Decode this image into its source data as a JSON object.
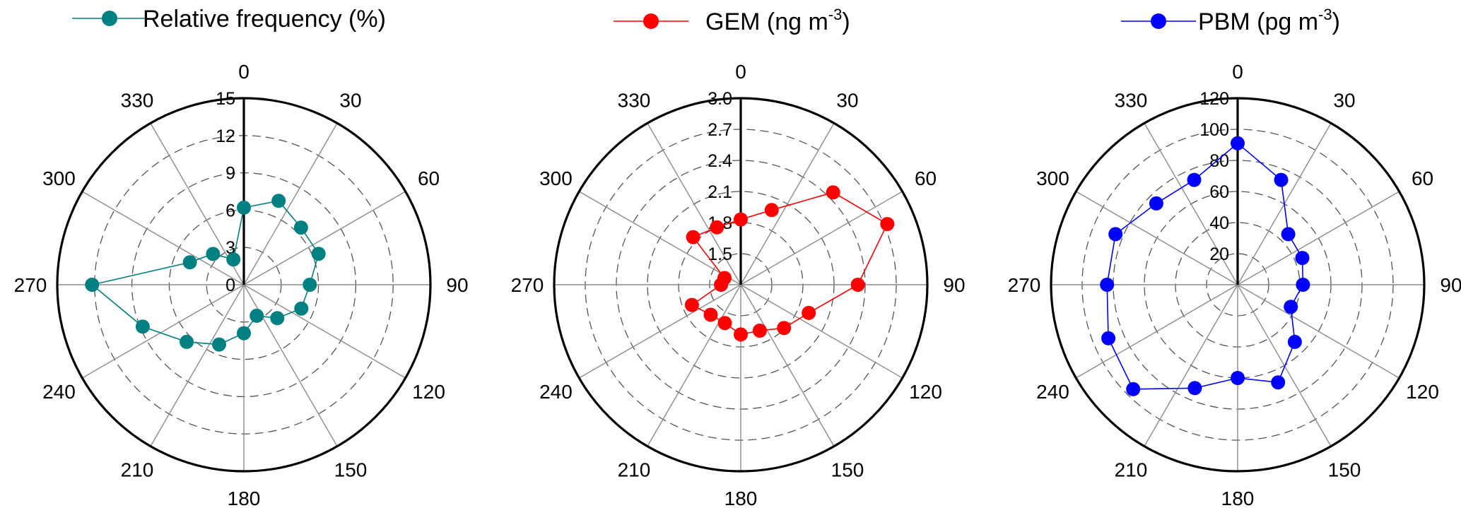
{
  "chart_data": [
    {
      "type": "polar-line",
      "angle_unit": "degrees",
      "angle_ticks": [
        "0",
        "30",
        "60",
        "90",
        "120",
        "150",
        "180",
        "210",
        "240",
        "270",
        "300",
        "330"
      ],
      "rlim": [
        0,
        15
      ],
      "radial_ticks": [
        "0",
        "3",
        "6",
        "9",
        "12",
        "15"
      ],
      "color": "#008080",
      "series": [
        {
          "legend_main": "Relative frequency (%)",
          "legend_sup": "",
          "legend_tail": "",
          "theta": [
            0,
            22.5,
            45,
            67.5,
            90,
            112.5,
            135,
            157.5,
            180,
            202.5,
            225,
            247.5,
            270,
            292.5,
            315,
            337.5
          ],
          "r": [
            6.2,
            7.3,
            6.5,
            6.5,
            5.3,
            5.0,
            3.8,
            2.7,
            3.9,
            5.2,
            6.5,
            8.8,
            12.2,
            4.7,
            3.5,
            2.2
          ]
        }
      ]
    },
    {
      "type": "polar-line",
      "angle_unit": "degrees",
      "angle_ticks": [
        "0",
        "30",
        "60",
        "90",
        "120",
        "150",
        "180",
        "210",
        "240",
        "270",
        "300",
        "330"
      ],
      "rlim": [
        1.2,
        3.0
      ],
      "radial_ticks": [
        "1.5",
        "1.8",
        "2.1",
        "2.4",
        "2.7",
        "3.0"
      ],
      "color": "#ff0000",
      "series": [
        {
          "legend_main": "GEM (ng m",
          "legend_sup": "-3",
          "legend_tail": ")",
          "theta": [
            0,
            22.5,
            45,
            67.5,
            90,
            112.5,
            135,
            157.5,
            180,
            202.5,
            225,
            247.5,
            270,
            292.5,
            315,
            337.5
          ],
          "r": [
            1.83,
            1.98,
            2.46,
            2.73,
            2.33,
            1.91,
            1.79,
            1.68,
            1.68,
            1.6,
            1.61,
            1.71,
            1.39,
            1.37,
            1.85,
            1.8
          ]
        }
      ]
    },
    {
      "type": "polar-line",
      "angle_unit": "degrees",
      "angle_ticks": [
        "0",
        "30",
        "60",
        "90",
        "120",
        "150",
        "180",
        "210",
        "240",
        "270",
        "300",
        "330"
      ],
      "rlim": [
        0,
        120
      ],
      "radial_ticks": [
        "20",
        "40",
        "60",
        "80",
        "100",
        "120"
      ],
      "color": "#0000ff",
      "series": [
        {
          "legend_main": "PBM (pg m",
          "legend_sup": "-3",
          "legend_tail": ")",
          "theta": [
            0,
            22.5,
            45,
            67.5,
            90,
            112.5,
            135,
            157.5,
            180,
            202.5,
            225,
            247.5,
            270,
            292.5,
            315,
            337.5
          ],
          "r": [
            91,
            73,
            46,
            45,
            42,
            37,
            52,
            68,
            60,
            72,
            95,
            90,
            84,
            85,
            74,
            73
          ]
        }
      ]
    }
  ]
}
